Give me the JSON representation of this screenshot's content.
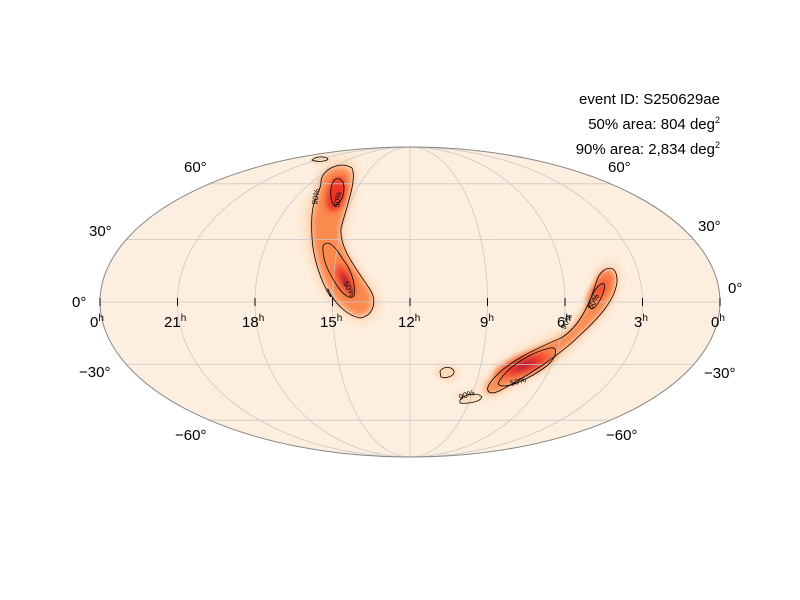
{
  "info": {
    "event_label": "event ID: S250629ae",
    "area50_label": "50% area: 804 deg",
    "area90_label": "90% area: 2,834 deg",
    "unit_superscript": "2"
  },
  "map": {
    "projection": "mollweide",
    "ra_labels": [
      "0",
      "21",
      "18",
      "15",
      "12",
      "9",
      "6",
      "3",
      "0"
    ],
    "ra_suffix": "h",
    "dec_labels_left": [
      "60°",
      "30°",
      "0°",
      "−30°",
      "−60°"
    ],
    "dec_labels_right": [
      "60°",
      "30°",
      "0°",
      "−30°",
      "−60°"
    ],
    "contour_labels": [
      "90%",
      "50%",
      "50%",
      "90%",
      "50%",
      "90%",
      "50%",
      "90%"
    ],
    "colors": {
      "background": "#fdefe0",
      "low": "#fdd9b8",
      "mid": "#fb8a4f",
      "high": "#ee3528",
      "peak": "#8c0a3d",
      "grid": "#c8c8c8",
      "outline": "#888888"
    }
  }
}
